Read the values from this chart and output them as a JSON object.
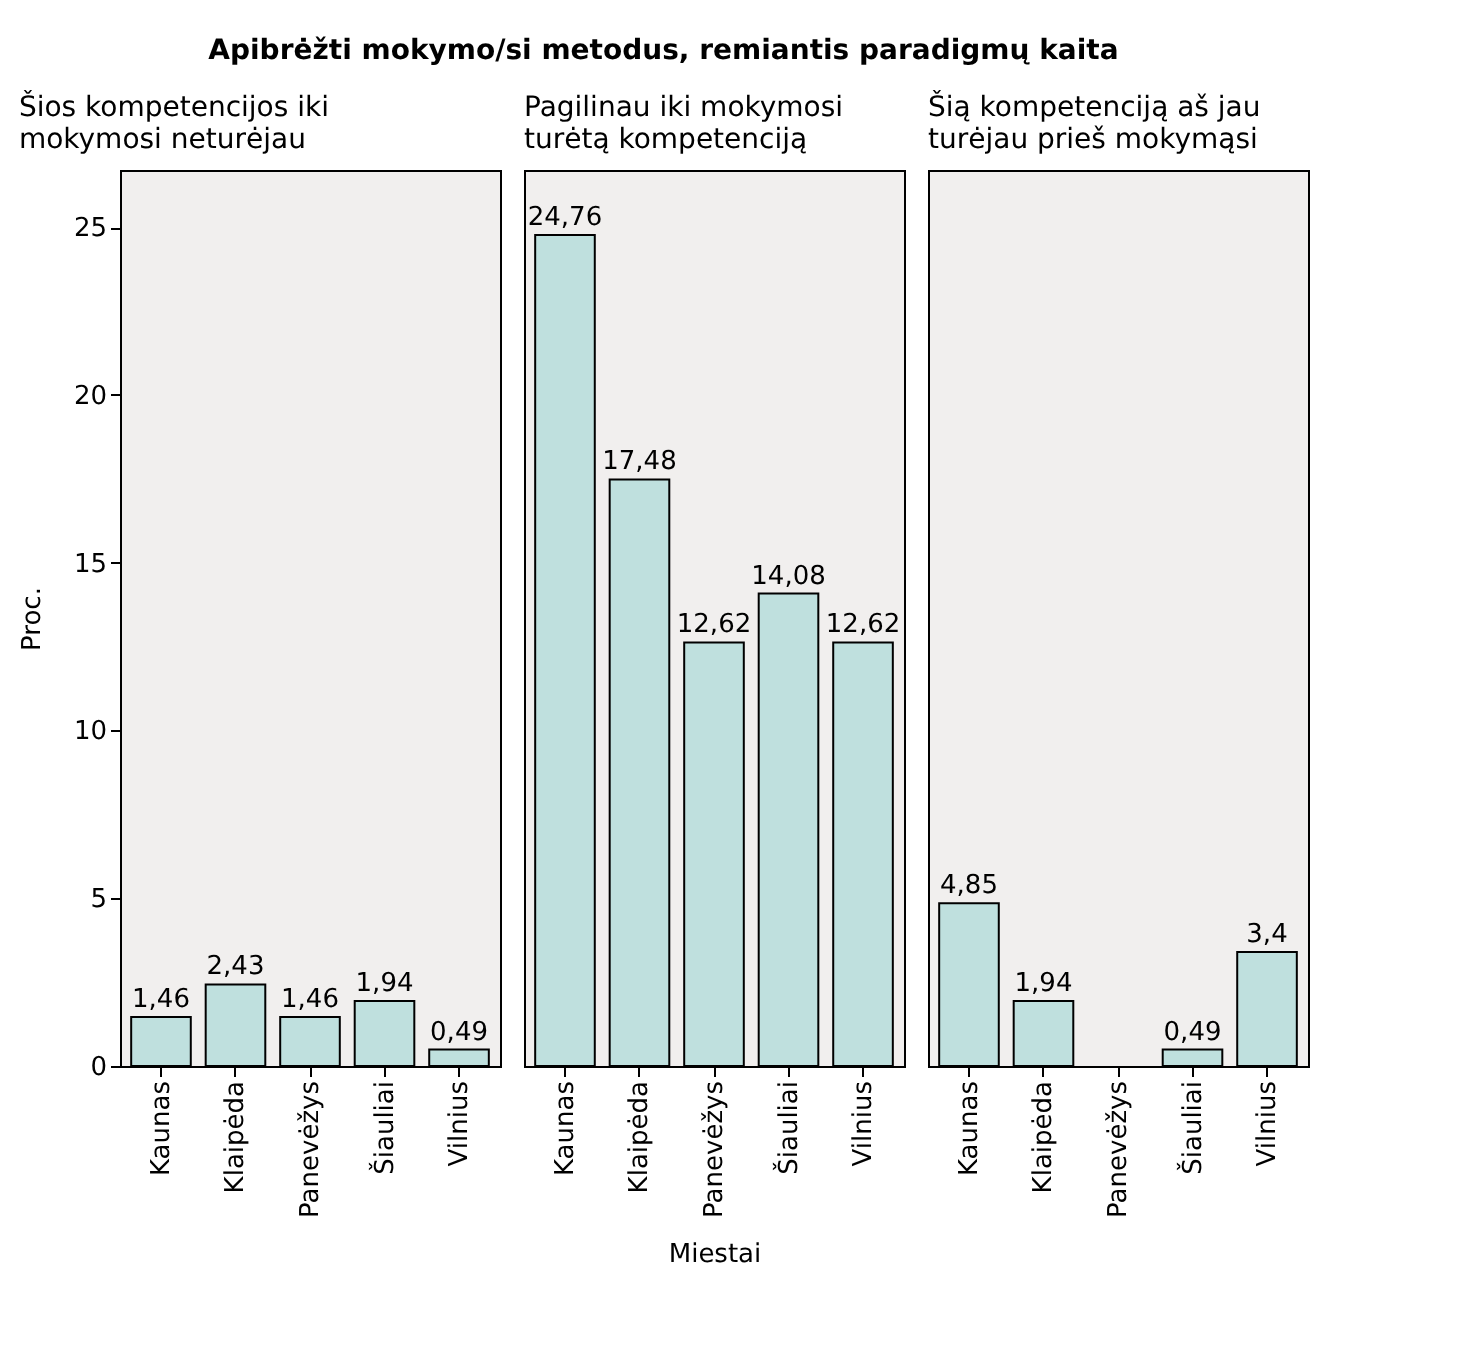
{
  "chart_data": [
    {
      "type": "bar",
      "title": "Apibrėžti mokymo/si metodus, remiantis paradigmų kaita",
      "subtitle": "Šios kompetencijos iki mokymosi neturėjau",
      "ylabel": "Proc.",
      "categories": [
        "Kaunas",
        "Klaipėda",
        "Panevėžys",
        "Šiauliai",
        "Vilnius"
      ],
      "values": [
        1.46,
        2.43,
        1.46,
        1.94,
        0.49
      ],
      "value_labels": [
        "1,46",
        "2,43",
        "1,46",
        "1,94",
        "0,49"
      ],
      "color": "#bfe0de",
      "ylim": [
        0,
        26.7
      ],
      "yticks": [
        0,
        5,
        10,
        15,
        20,
        25
      ]
    },
    {
      "type": "bar",
      "subtitle": "Pagilinau iki mokymosi turėtą kompetenciją",
      "xlabel": "Miestai",
      "categories": [
        "Kaunas",
        "Klaipėda",
        "Panevėžys",
        "Šiauliai",
        "Vilnius"
      ],
      "values": [
        24.76,
        17.48,
        12.62,
        14.08,
        12.62
      ],
      "value_labels": [
        "24,76",
        "17,48",
        "12,62",
        "14,08",
        "12,62"
      ],
      "color": "#bfe0de",
      "ylim": [
        0,
        26.7
      ],
      "yticks": [
        0,
        5,
        10,
        15,
        20,
        25
      ],
      "tick_labels": "x"
    },
    {
      "type": "bar",
      "subtitle": "Šią kompetenciją aš jau turėjau prieš mokymąsi",
      "categories": [
        "Kaunas",
        "Klaipėda",
        "Panevėžys",
        "Šiauliai",
        "Vilnius"
      ],
      "values": [
        4.85,
        1.94,
        null,
        0.49,
        3.4
      ],
      "value_labels": [
        "4,85",
        "1,94",
        null,
        "0,49",
        "3,4"
      ],
      "color": "#bfe0de",
      "ylim": [
        0,
        26.7
      ],
      "yticks": [
        0,
        5,
        10,
        15,
        20,
        25
      ],
      "tick_labels": "x"
    }
  ]
}
